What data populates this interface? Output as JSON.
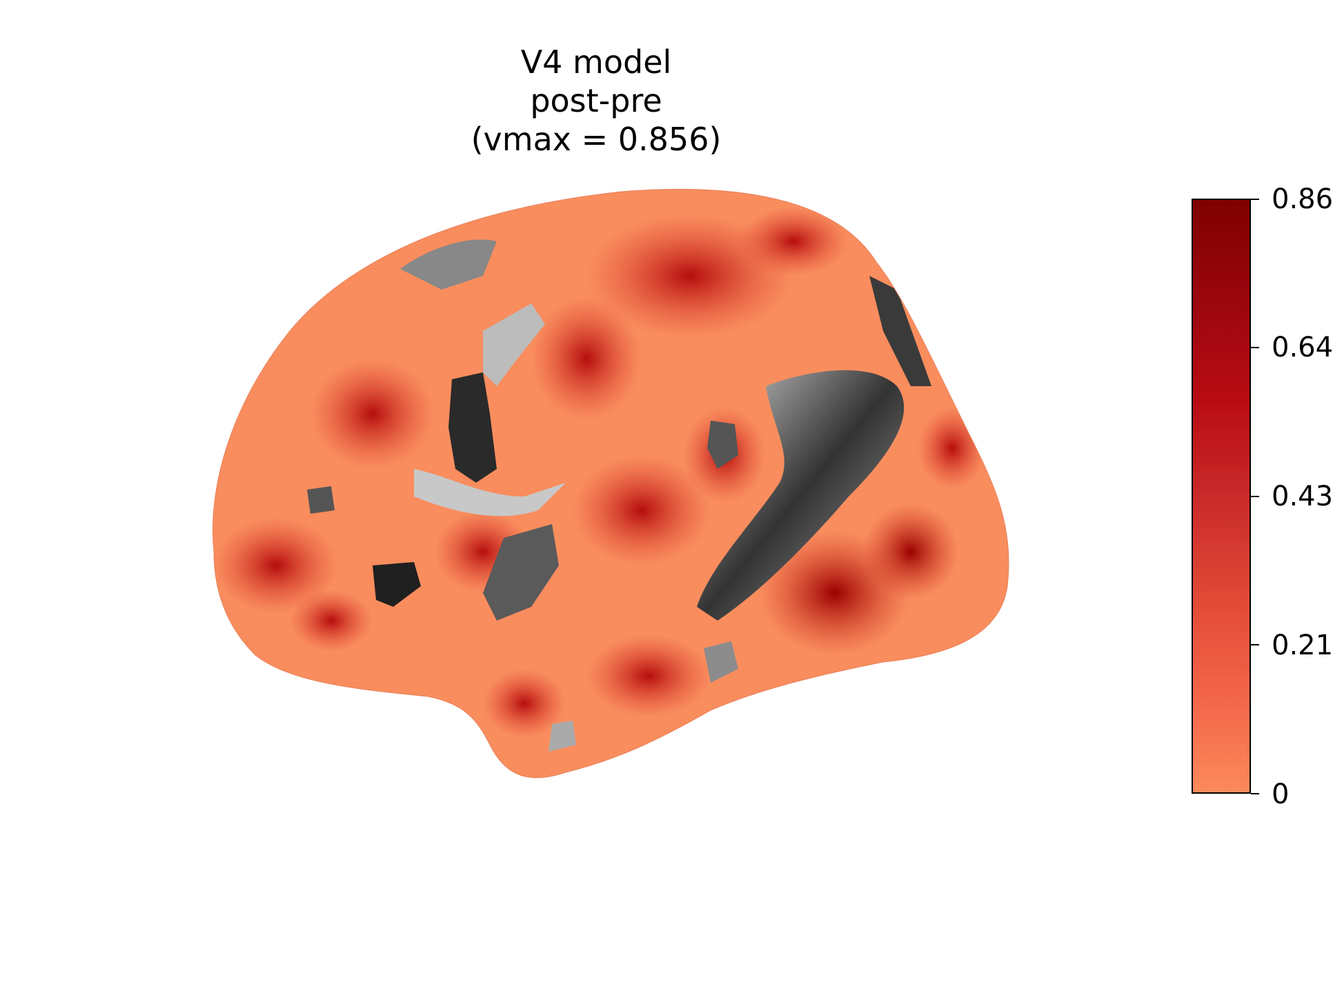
{
  "title": {
    "line1": "V4 model",
    "line2": "post-pre",
    "line3": "(vmax = 0.856)"
  },
  "colorbar": {
    "ticks": [
      "0",
      "0.21",
      "0.43",
      "0.64",
      "0.86"
    ],
    "vmin": 0,
    "vmax": 0.856,
    "colormap": "Reds",
    "low_color": "#fc8a5a",
    "high_color": "#7f0000"
  },
  "surface": {
    "view": "lateral",
    "base_color": "#f98d5e",
    "sulcal_shading": "gray"
  }
}
